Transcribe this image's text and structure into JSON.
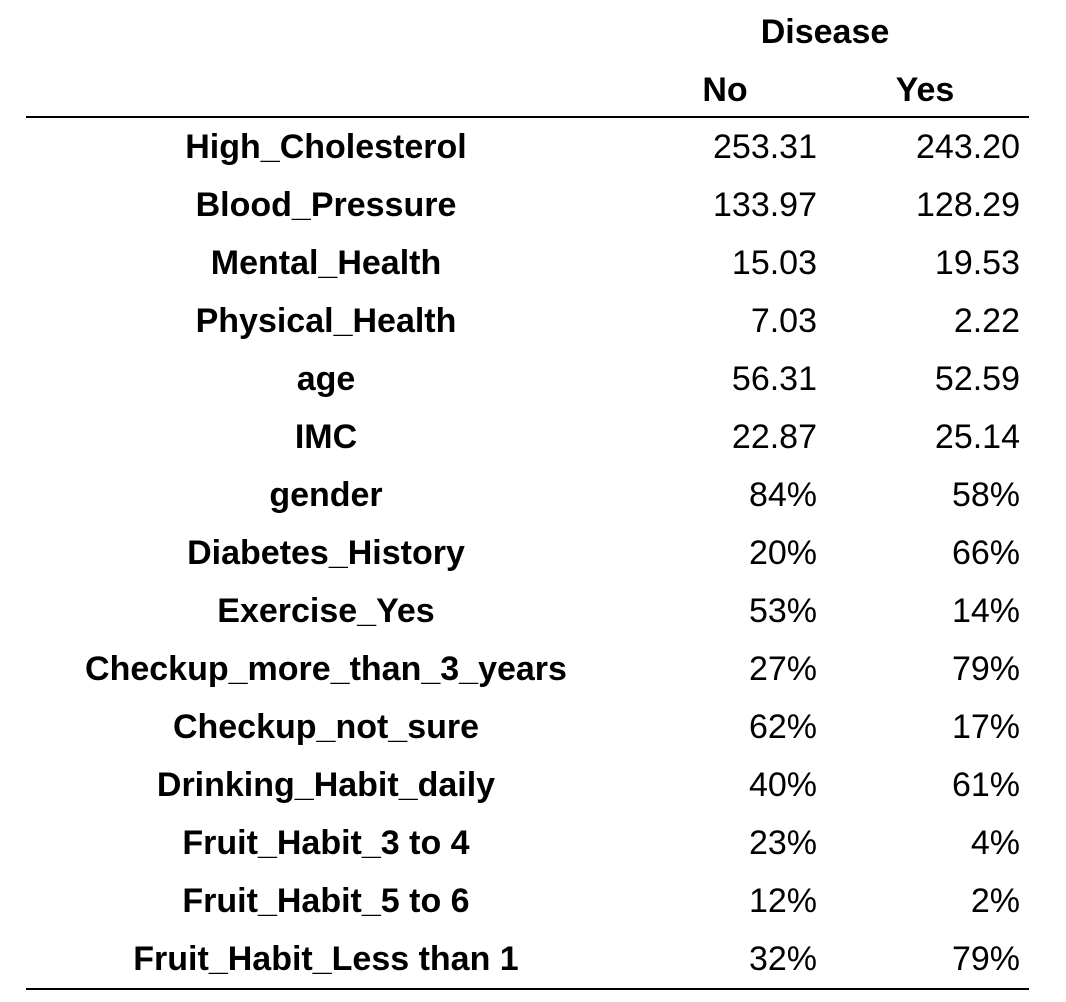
{
  "table": {
    "group_header": "Disease",
    "columns": [
      "No",
      "Yes"
    ],
    "rows": [
      {
        "label": "High_Cholesterol",
        "no": "253.31",
        "yes": "243.20"
      },
      {
        "label": "Blood_Pressure",
        "no": "133.97",
        "yes": "128.29"
      },
      {
        "label": "Mental_Health",
        "no": "15.03",
        "yes": "19.53"
      },
      {
        "label": "Physical_Health",
        "no": "7.03",
        "yes": "2.22"
      },
      {
        "label": "age",
        "no": "56.31",
        "yes": "52.59"
      },
      {
        "label": "IMC",
        "no": "22.87",
        "yes": "25.14"
      },
      {
        "label": "gender",
        "no": "84%",
        "yes": "58%"
      },
      {
        "label": "Diabetes_History",
        "no": "20%",
        "yes": "66%"
      },
      {
        "label": "Exercise_Yes",
        "no": "53%",
        "yes": "14%"
      },
      {
        "label": "Checkup_more_than_3_years",
        "no": "27%",
        "yes": "79%"
      },
      {
        "label": "Checkup_not_sure",
        "no": "62%",
        "yes": "17%"
      },
      {
        "label": "Drinking_Habit_daily",
        "no": "40%",
        "yes": "61%"
      },
      {
        "label": "Fruit_Habit_3 to 4",
        "no": "23%",
        "yes": "4%"
      },
      {
        "label": "Fruit_Habit_5 to 6",
        "no": "12%",
        "yes": "2%"
      },
      {
        "label": "Fruit_Habit_Less than 1",
        "no": "32%",
        "yes": "79%"
      }
    ]
  }
}
